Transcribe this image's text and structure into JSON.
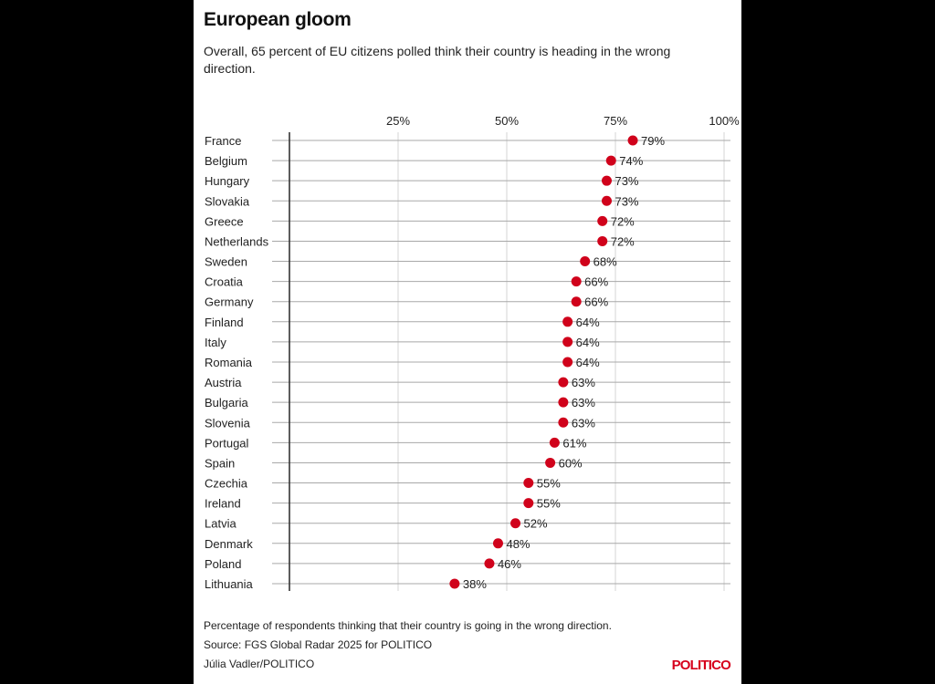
{
  "title": "European gloom",
  "subtitle": "Overall, 65 percent of EU citizens polled think their country is heading in the wrong direction.",
  "footer": {
    "note": "Percentage of respondents thinking that their country is going in the wrong direction.",
    "source": "Source: FGS Global Radar 2025 for POLITICO",
    "credit": "Júlia Vadler/POLITICO",
    "logo": "POLITICO"
  },
  "colors": {
    "dot": "#d0021b",
    "logo": "#d6001c",
    "background": "#000000"
  },
  "chart_data": {
    "type": "dot",
    "xlim": [
      0,
      100
    ],
    "x_ticks": [
      25,
      50,
      75,
      100
    ],
    "x_tick_labels": [
      "25%",
      "50%",
      "75%",
      "100%"
    ],
    "grid": true,
    "categories": [
      "France",
      "Belgium",
      "Hungary",
      "Slovakia",
      "Greece",
      "Netherlands",
      "Sweden",
      "Croatia",
      "Germany",
      "Finland",
      "Italy",
      "Romania",
      "Austria",
      "Bulgaria",
      "Slovenia",
      "Portugal",
      "Spain",
      "Czechia",
      "Ireland",
      "Latvia",
      "Denmark",
      "Poland",
      "Lithuania"
    ],
    "values": [
      79,
      74,
      73,
      73,
      72,
      72,
      68,
      66,
      66,
      64,
      64,
      64,
      63,
      63,
      63,
      61,
      60,
      55,
      55,
      52,
      48,
      46,
      38
    ],
    "value_labels": [
      "79%",
      "74%",
      "73%",
      "73%",
      "72%",
      "72%",
      "68%",
      "66%",
      "66%",
      "64%",
      "64%",
      "64%",
      "63%",
      "63%",
      "63%",
      "61%",
      "60%",
      "55%",
      "55%",
      "52%",
      "48%",
      "46%",
      "38%"
    ]
  }
}
